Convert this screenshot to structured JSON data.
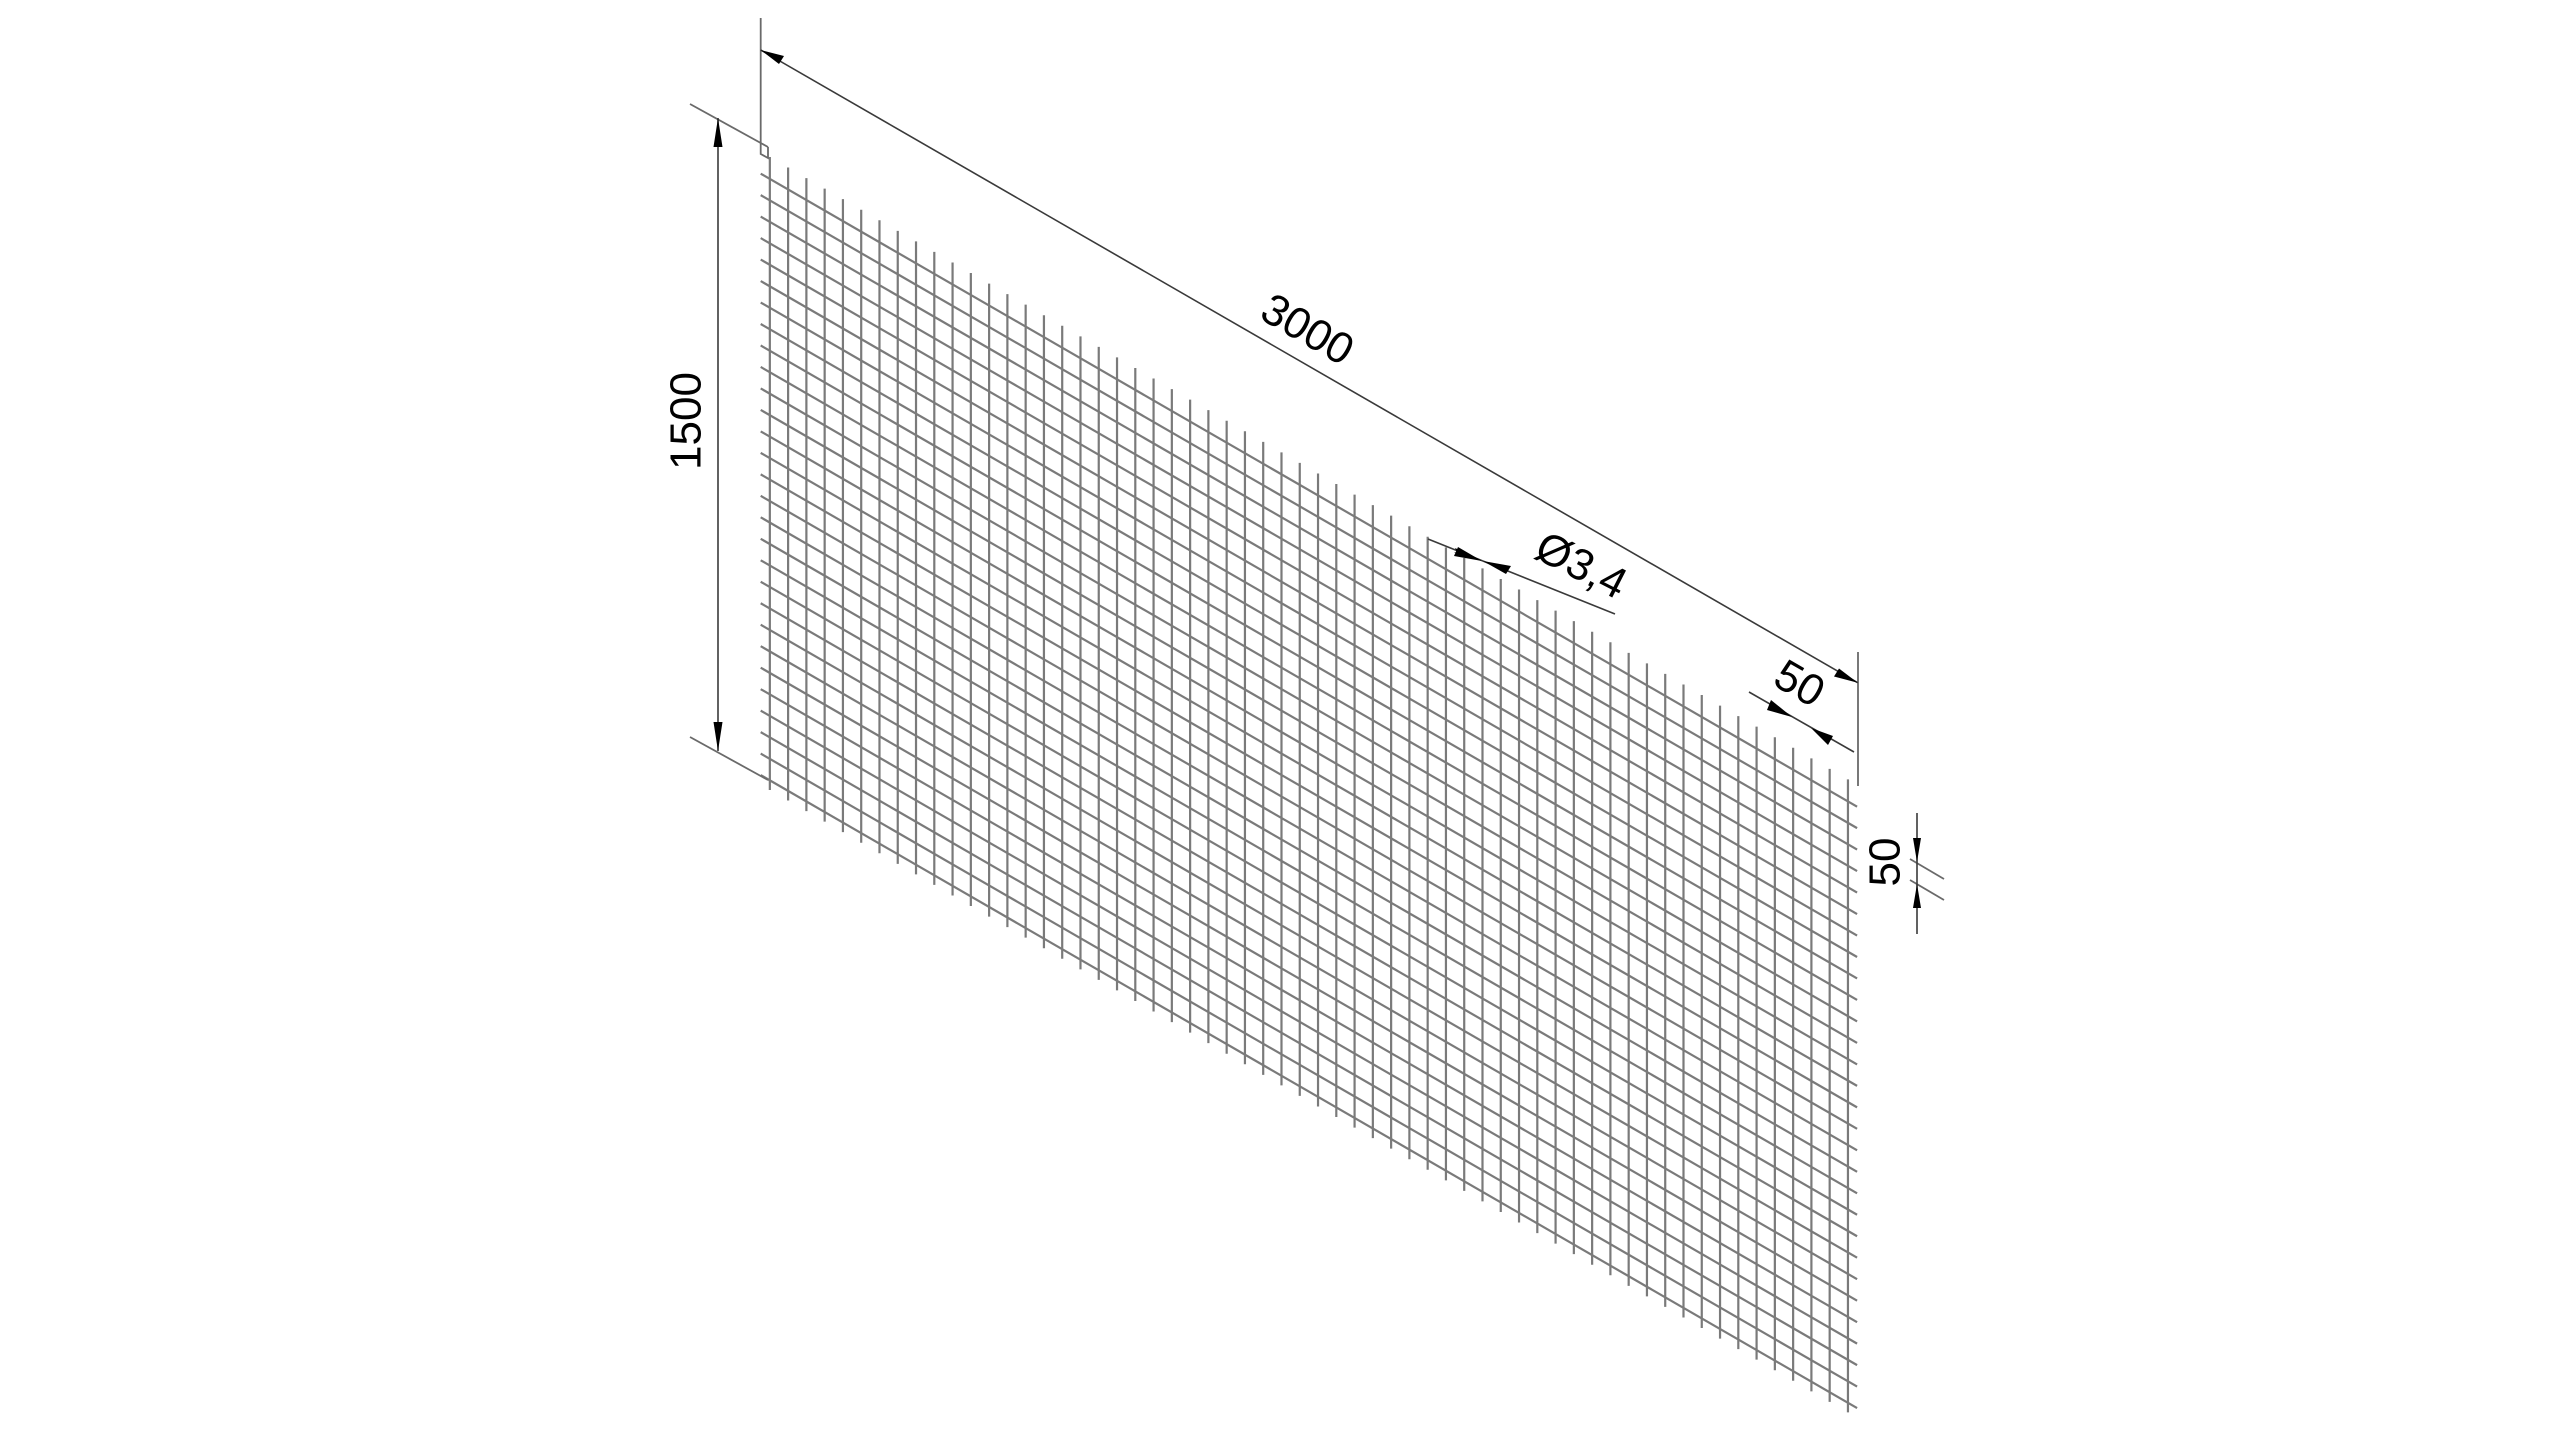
{
  "drawing": {
    "mesh": {
      "length_mm": 3000,
      "height_mm": 1500,
      "wire_spacing_mm": 50,
      "wire_color": "#7a7a7a"
    },
    "dimensions": {
      "length_label": "3000",
      "height_label": "1500",
      "horizontal_spacing_label": "50",
      "vertical_spacing_label": "50",
      "wire_diameter_label": "Ø3,4"
    }
  }
}
